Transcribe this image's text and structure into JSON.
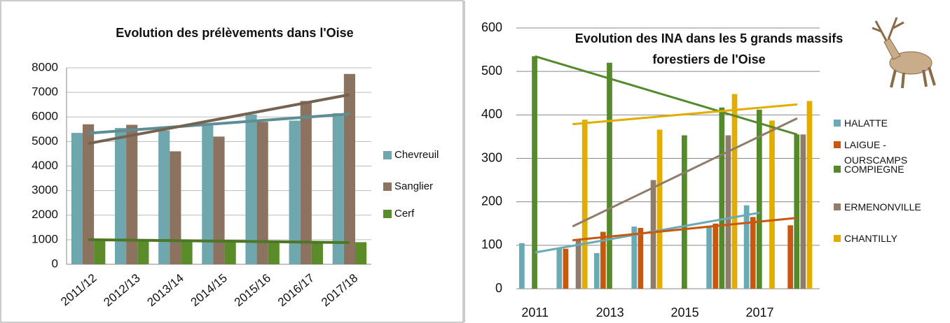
{
  "chart_data": [
    {
      "type": "bar",
      "title": "Evolution des prélèvements dans l'Oise",
      "categories": [
        "2011/12",
        "2012/13",
        "2013/14",
        "2014/15",
        "2015/16",
        "2016/17",
        "2017/18"
      ],
      "series": [
        {
          "name": "Chevreuil",
          "color": "#6fa7ae",
          "values": [
            5350,
            5550,
            5450,
            5650,
            6100,
            5850,
            6150
          ]
        },
        {
          "name": "Sanglier",
          "color": "#8b735f",
          "values": [
            5700,
            5680,
            4600,
            5200,
            5800,
            6650,
            7750
          ]
        },
        {
          "name": "Cerf",
          "color": "#5b8c2a",
          "values": [
            1000,
            1000,
            950,
            950,
            900,
            900,
            900
          ]
        }
      ],
      "ylim": [
        0,
        8000
      ],
      "yticks": [
        0,
        1000,
        2000,
        3000,
        4000,
        5000,
        6000,
        7000,
        8000
      ],
      "grid": true,
      "trendline": true,
      "legend": "right"
    },
    {
      "type": "bar",
      "title": [
        "Evolution des INA dans les 5 grands massifs",
        "forestiers de l'Oise"
      ],
      "x": [
        2011,
        2012,
        2013,
        2014,
        2015,
        2016,
        2017,
        2018
      ],
      "series": [
        {
          "name": "HALATTE",
          "color": "#6aaab4",
          "values": [
            105,
            93,
            82,
            143,
            null,
            145,
            192,
            null
          ]
        },
        {
          "name": "LAIGUE - OURSCAMPS",
          "color": "#c9580f",
          "values": [
            null,
            92,
            131,
            140,
            null,
            150,
            165,
            146
          ]
        },
        {
          "name": "COMPIEGNE",
          "color": "#548a2c",
          "values": [
            535,
            null,
            520,
            null,
            353,
            417,
            412,
            355
          ]
        },
        {
          "name": "ERMENONVILLE",
          "color": "#8f7c6b",
          "values": [
            null,
            113,
            null,
            250,
            null,
            353,
            null,
            355
          ]
        },
        {
          "name": "CHANTILLY",
          "color": "#e3ad00",
          "values": [
            null,
            389,
            null,
            366,
            null,
            448,
            387,
            432
          ]
        }
      ],
      "xlim": [
        2010.5,
        2018.6
      ],
      "xticks": [
        2011,
        2013,
        2015,
        2017
      ],
      "ylim": [
        0,
        600
      ],
      "yticks": [
        0,
        100,
        200,
        300,
        400,
        500,
        600
      ],
      "grid": true,
      "trendline": true,
      "legend": "right"
    }
  ]
}
